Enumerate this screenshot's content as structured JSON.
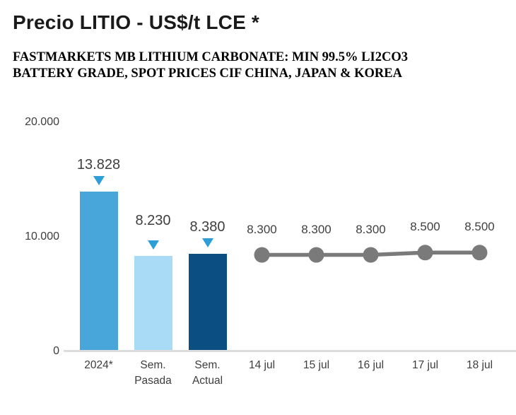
{
  "chart_data": {
    "type": "bar+line",
    "title": "Precio LITIO - US$/t LCE *",
    "subtitle_line1": "FASTMARKETS MB LITHIUM CARBONATE: MIN 99.5% LI2CO3",
    "subtitle_line2": "BATTERY GRADE, SPOT PRICES CIF CHINA, JAPAN & KOREA",
    "ylim": [
      0,
      20000
    ],
    "grid": false,
    "legend": "none",
    "yticks": [
      {
        "value": 0,
        "label": "0"
      },
      {
        "value": 10000,
        "label": "10.000"
      },
      {
        "value": 20000,
        "label": "20.000"
      }
    ],
    "bar_series": {
      "categories": [
        "2024*",
        "Sem. Pasada",
        "Sem. Actual"
      ],
      "values": [
        13828,
        8230,
        8380
      ],
      "value_labels": [
        "13.828",
        "8.230",
        "8.380"
      ],
      "bar_colors": [
        "#49A6DB",
        "#A9DBF6",
        "#0A4E82"
      ],
      "marker_color": "#2D9ED8"
    },
    "line_series": {
      "categories": [
        "14 jul",
        "15 jul",
        "16 jul",
        "17 jul",
        "18 jul"
      ],
      "values": [
        8300,
        8300,
        8300,
        8500,
        8500
      ],
      "value_labels": [
        "8.300",
        "8.300",
        "8.300",
        "8.500",
        "8.500"
      ],
      "color": "#7A7A7A"
    },
    "colors": {
      "axis_line": "#DCDCDC",
      "tick_text": "#3D3D3D",
      "value_text": "#3F3F3F",
      "title_text": "#1A1A1A",
      "subtitle_text": "#000000"
    }
  }
}
